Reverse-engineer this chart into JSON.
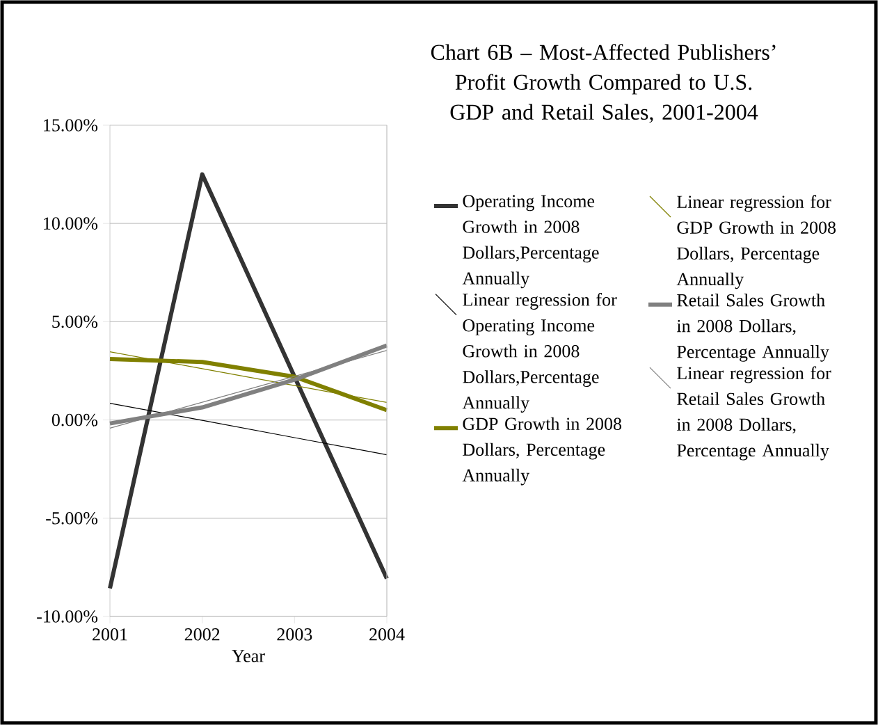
{
  "chart_data": {
    "type": "line",
    "title": "Chart 6B – Most-Affected Publishers’ Profit Growth Compared to U.S. GDP and Retail Sales, 2001-2004",
    "xlabel": "Year",
    "x": [
      2001,
      2002,
      2003,
      2004
    ],
    "series": [
      {
        "name": "Operating Income Growth in 2008 Dollars,Percentage Annually",
        "color": "#333333",
        "values": [
          -8.57,
          12.5,
          2.2,
          -8.07
        ]
      },
      {
        "name": "Linear regression for Operating Income Growth in 2008 Dollars,Percentage Annually",
        "type": "line",
        "color": "#000000",
        "values": [
          0.85,
          -0.02,
          -0.9,
          -1.77
        ]
      },
      {
        "name": "GDP Growth in 2008 Dollars, Percentage Annually",
        "color": "#808000",
        "values": [
          3.1,
          2.95,
          2.2,
          0.5
        ]
      },
      {
        "name": "Linear regression for GDP Growth in 2008 Dollars, Percentage Annually",
        "type": "line",
        "color": "#808000",
        "values": [
          3.47,
          2.61,
          1.75,
          0.89
        ]
      },
      {
        "name": "Retail Sales Growth in 2008 Dollars, Percentage Annually",
        "color": "#808080",
        "values": [
          -0.18,
          0.64,
          2.05,
          3.79
        ]
      },
      {
        "name": "Linear regression for Retail Sales Growth in 2008 Dollars, Percentage Annually",
        "type": "line",
        "color": "#808080",
        "values": [
          -0.42,
          0.9,
          2.22,
          3.54
        ]
      }
    ],
    "xlim": [
      2001,
      2004
    ],
    "xticks": [
      2001,
      2002,
      2003,
      2004
    ],
    "ylim": [
      -10,
      15
    ],
    "yticks": [
      {
        "value": -10,
        "label": "-10.00%"
      },
      {
        "value": -5,
        "label": "-5.00%"
      },
      {
        "value": 0,
        "label": "0.00%"
      },
      {
        "value": 5,
        "label": "5.00%"
      },
      {
        "value": 10,
        "label": "10.00%"
      },
      {
        "value": 15,
        "label": "15.00%"
      }
    ],
    "grid": "y",
    "legend": "right"
  }
}
